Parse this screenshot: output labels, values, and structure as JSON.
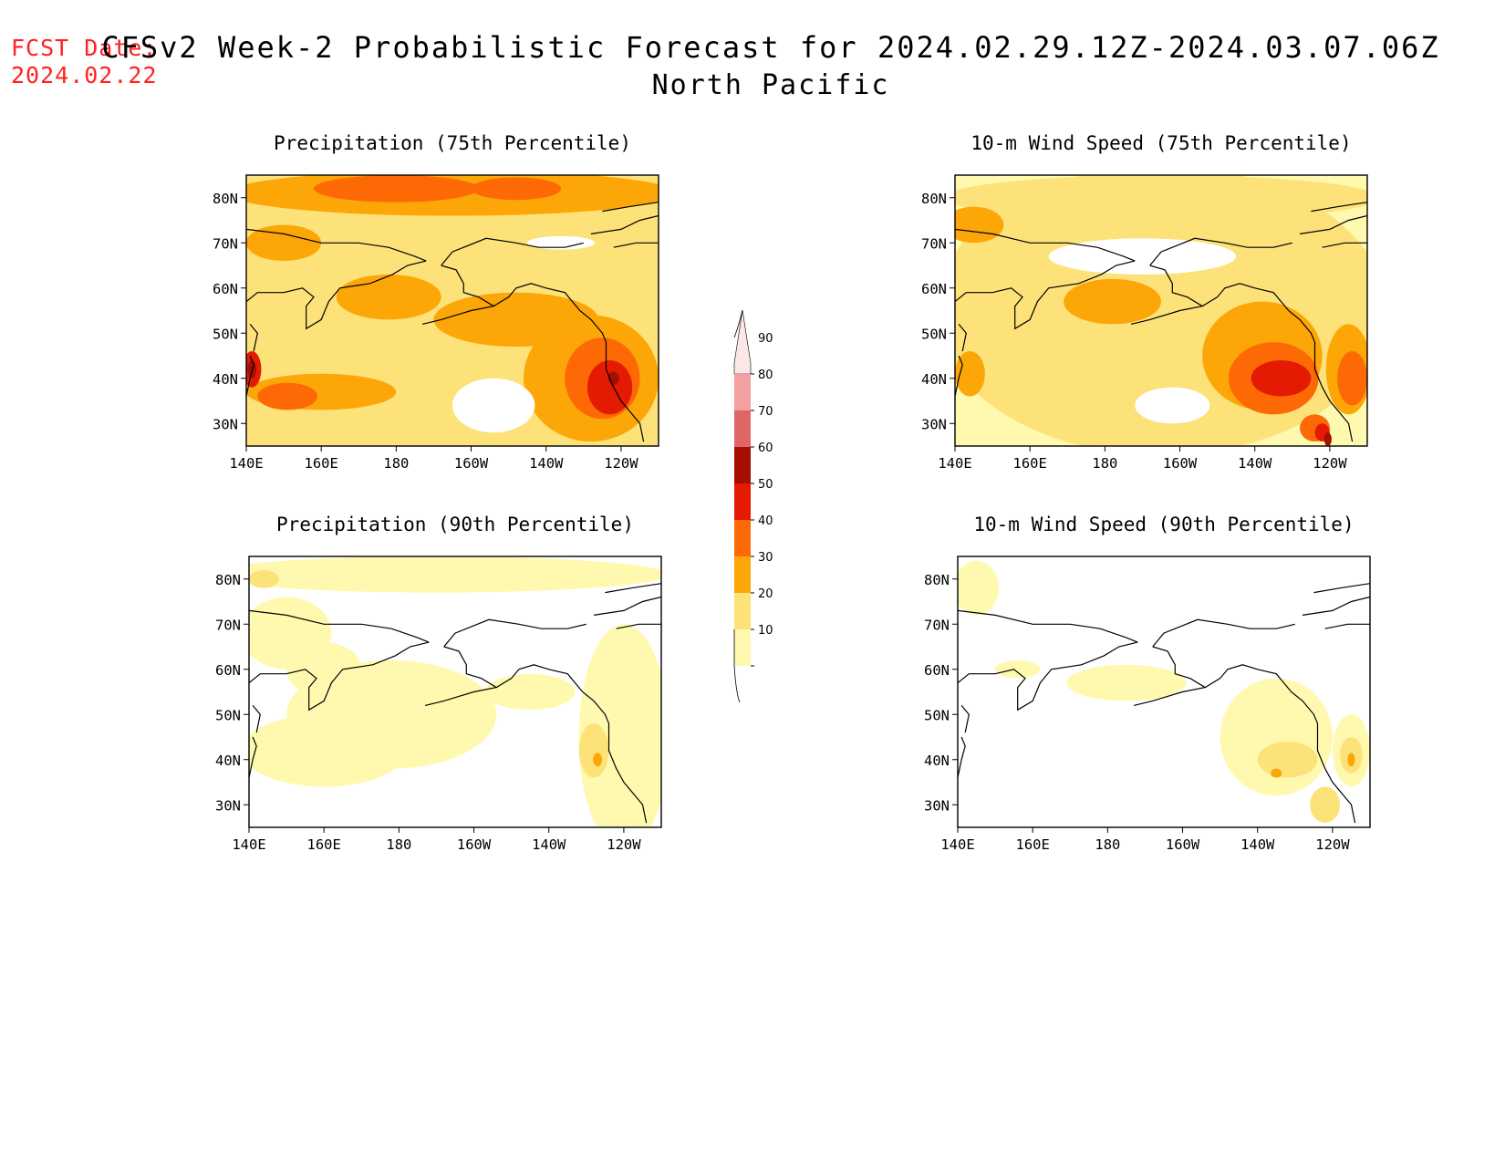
{
  "header": {
    "fcst_label": "FCST Date:",
    "fcst_date": "2024.02.22",
    "title": "CFSv2 Week-2 Probabilistic Forecast for 2024.02.29.12Z-2024.03.07.06Z",
    "region": "North Pacific"
  },
  "map_extent": {
    "lon": [
      140,
      250
    ],
    "lat": [
      25,
      85
    ]
  },
  "lon_ticks": [
    {
      "value": 140,
      "label": "140E"
    },
    {
      "value": 160,
      "label": "160E"
    },
    {
      "value": 180,
      "label": "180"
    },
    {
      "value": 200,
      "label": "160W"
    },
    {
      "value": 220,
      "label": "140W"
    },
    {
      "value": 240,
      "label": "120W"
    }
  ],
  "lat_ticks": [
    {
      "value": 80,
      "label": "80N"
    },
    {
      "value": 70,
      "label": "70N"
    },
    {
      "value": 60,
      "label": "60N"
    },
    {
      "value": 50,
      "label": "50N"
    },
    {
      "value": 40,
      "label": "40N"
    },
    {
      "value": 30,
      "label": "30N"
    }
  ],
  "colorbar": {
    "levels": [
      10,
      20,
      30,
      40,
      50,
      60,
      70,
      80,
      90
    ],
    "colors": [
      "#fff9b0",
      "#fde27a",
      "#fca607",
      "#fd6a05",
      "#e41b02",
      "#a50f01",
      "#e06666",
      "#f4a0a0",
      "#fde6e6"
    ]
  },
  "panels": [
    {
      "id": "precip-75",
      "title": "Precipitation (75th Percentile)",
      "blobs": [
        {
          "level": 20,
          "lon": 195,
          "lat": 52,
          "rlon": 62,
          "rlat": 30
        },
        {
          "level": 20,
          "lon": 162,
          "lat": 58,
          "rlon": 24,
          "rlat": 34
        },
        {
          "level": 20,
          "lon": 232,
          "lat": 60,
          "rlon": 20,
          "rlat": 28
        },
        {
          "level": 30,
          "lon": 195,
          "lat": 81,
          "rlon": 60,
          "rlat": 5
        },
        {
          "level": 30,
          "lon": 212,
          "lat": 53,
          "rlon": 22,
          "rlat": 6
        },
        {
          "level": 30,
          "lon": 232,
          "lat": 40,
          "rlon": 18,
          "rlat": 14
        },
        {
          "level": 30,
          "lon": 160,
          "lat": 37,
          "rlon": 20,
          "rlat": 4
        },
        {
          "level": 30,
          "lon": 178,
          "lat": 58,
          "rlon": 14,
          "rlat": 5
        },
        {
          "level": 30,
          "lon": 150,
          "lat": 70,
          "rlon": 10,
          "rlat": 4
        },
        {
          "level": 40,
          "lon": 180,
          "lat": 82,
          "rlon": 22,
          "rlat": 3
        },
        {
          "level": 40,
          "lon": 212,
          "lat": 82,
          "rlon": 12,
          "rlat": 2.5
        },
        {
          "level": 40,
          "lon": 235,
          "lat": 40,
          "rlon": 10,
          "rlat": 9
        },
        {
          "level": 40,
          "lon": 151,
          "lat": 36,
          "rlon": 8,
          "rlat": 3
        },
        {
          "level": 50,
          "lon": 237,
          "lat": 38,
          "rlon": 6,
          "rlat": 6
        },
        {
          "level": 50,
          "lon": 141.5,
          "lat": 42,
          "rlon": 2.5,
          "rlat": 4
        },
        {
          "level": 60,
          "lon": 141.5,
          "lat": 42,
          "rlon": 1.2,
          "rlat": 2
        },
        {
          "level": 60,
          "lon": 238,
          "lat": 40,
          "rlon": 1.5,
          "rlat": 1.5
        },
        {
          "level": 0,
          "lon": 206,
          "lat": 34,
          "rlon": 11,
          "rlat": 6
        },
        {
          "level": 0,
          "lon": 224,
          "lat": 70,
          "rlon": 9,
          "rlat": 1.5
        }
      ]
    },
    {
      "id": "wind-75",
      "title": "10-m Wind Speed (75th Percentile)",
      "blobs": [
        {
          "level": 20,
          "lon": 195,
          "lat": 55,
          "rlon": 60,
          "rlat": 32
        },
        {
          "level": 20,
          "lon": 195,
          "lat": 80,
          "rlon": 58,
          "rlat": 5
        },
        {
          "level": 30,
          "lon": 222,
          "lat": 45,
          "rlon": 16,
          "rlat": 12
        },
        {
          "level": 30,
          "lon": 182,
          "lat": 57,
          "rlon": 13,
          "rlat": 5
        },
        {
          "level": 30,
          "lon": 145,
          "lat": 74,
          "rlon": 8,
          "rlat": 4
        },
        {
          "level": 30,
          "lon": 245,
          "lat": 42,
          "rlon": 6,
          "rlat": 10
        },
        {
          "level": 30,
          "lon": 144,
          "lat": 41,
          "rlon": 4,
          "rlat": 5
        },
        {
          "level": 40,
          "lon": 225,
          "lat": 40,
          "rlon": 12,
          "rlat": 8
        },
        {
          "level": 40,
          "lon": 246,
          "lat": 40,
          "rlon": 4,
          "rlat": 6
        },
        {
          "level": 40,
          "lon": 236,
          "lat": 29,
          "rlon": 4,
          "rlat": 3
        },
        {
          "level": 50,
          "lon": 227,
          "lat": 40,
          "rlon": 8,
          "rlat": 4
        },
        {
          "level": 50,
          "lon": 238,
          "lat": 28,
          "rlon": 2,
          "rlat": 2
        },
        {
          "level": 60,
          "lon": 239.5,
          "lat": 26.5,
          "rlon": 1,
          "rlat": 1.5
        },
        {
          "level": 0,
          "lon": 198,
          "lat": 34,
          "rlon": 10,
          "rlat": 4
        },
        {
          "level": 0,
          "lon": 190,
          "lat": 67,
          "rlon": 25,
          "rlat": 4
        }
      ]
    },
    {
      "id": "precip-90",
      "title": "Precipitation (90th Percentile)",
      "blobs": [
        {
          "level": 10,
          "lon": 178,
          "lat": 50,
          "rlon": 28,
          "rlat": 12
        },
        {
          "level": 10,
          "lon": 160,
          "lat": 42,
          "rlon": 22,
          "rlat": 8
        },
        {
          "level": 10,
          "lon": 240,
          "lat": 45,
          "rlon": 12,
          "rlat": 25
        },
        {
          "level": 10,
          "lon": 190,
          "lat": 81,
          "rlon": 62,
          "rlat": 4
        },
        {
          "level": 10,
          "lon": 150,
          "lat": 68,
          "rlon": 12,
          "rlat": 8
        },
        {
          "level": 10,
          "lon": 160,
          "lat": 60,
          "rlon": 10,
          "rlat": 6
        },
        {
          "level": 10,
          "lon": 215,
          "lat": 55,
          "rlon": 12,
          "rlat": 4
        },
        {
          "level": 20,
          "lon": 232,
          "lat": 42,
          "rlon": 4,
          "rlat": 6
        },
        {
          "level": 20,
          "lon": 144,
          "lat": 80,
          "rlon": 4,
          "rlat": 2
        },
        {
          "level": 30,
          "lon": 233,
          "lat": 40,
          "rlon": 1.2,
          "rlat": 1.5
        }
      ]
    },
    {
      "id": "wind-90",
      "title": "10-m Wind Speed (90th Percentile)",
      "blobs": [
        {
          "level": 10,
          "lon": 225,
          "lat": 45,
          "rlon": 15,
          "rlat": 13
        },
        {
          "level": 10,
          "lon": 185,
          "lat": 57,
          "rlon": 16,
          "rlat": 4
        },
        {
          "level": 10,
          "lon": 245,
          "lat": 42,
          "rlon": 5,
          "rlat": 8
        },
        {
          "level": 10,
          "lon": 145,
          "lat": 78,
          "rlon": 6,
          "rlat": 6
        },
        {
          "level": 10,
          "lon": 156,
          "lat": 60,
          "rlon": 6,
          "rlat": 2
        },
        {
          "level": 20,
          "lon": 228,
          "lat": 40,
          "rlon": 8,
          "rlat": 4
        },
        {
          "level": 20,
          "lon": 245,
          "lat": 41,
          "rlon": 3,
          "rlat": 4
        },
        {
          "level": 20,
          "lon": 238,
          "lat": 30,
          "rlon": 4,
          "rlat": 4
        },
        {
          "level": 30,
          "lon": 225,
          "lat": 37,
          "rlon": 1.5,
          "rlat": 1
        },
        {
          "level": 30,
          "lon": 245,
          "lat": 40,
          "rlon": 1,
          "rlat": 1.5
        }
      ]
    }
  ]
}
